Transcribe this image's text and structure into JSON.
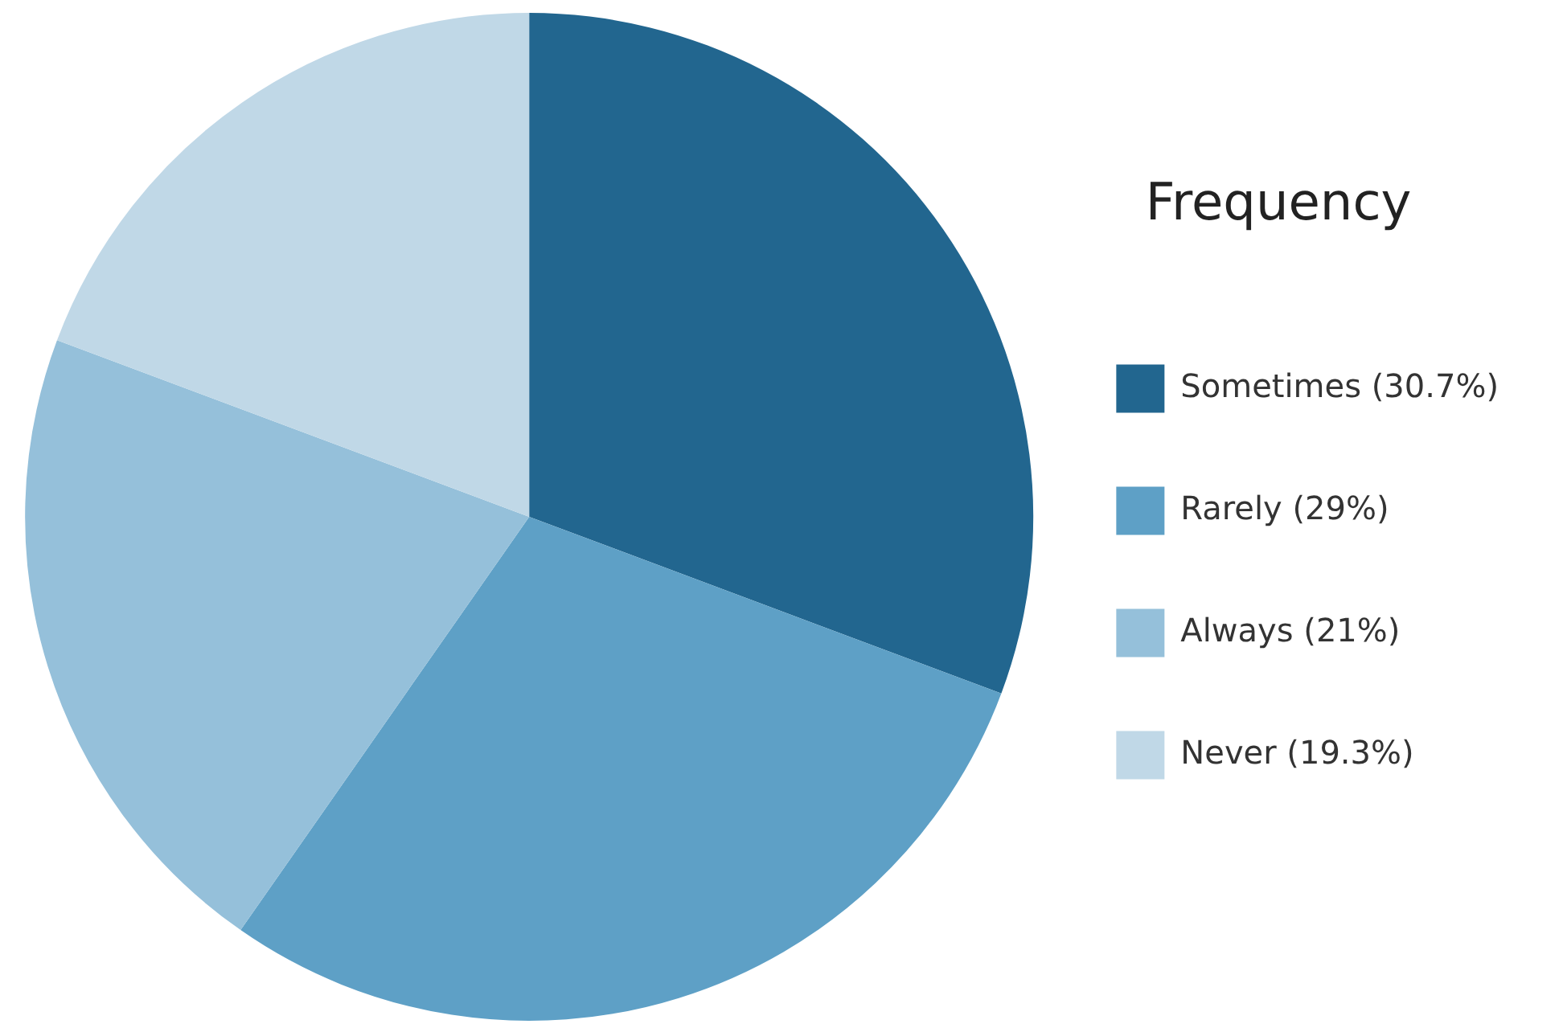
{
  "chart_data": {
    "type": "pie",
    "legend_title": "Frequency",
    "legend": "right",
    "categories": [
      "Sometimes (30.7%)",
      "Rarely (29%)",
      "Always (21%)",
      "Never (19.3%)"
    ],
    "values": [
      30.7,
      29,
      21,
      19.3
    ],
    "colors": [
      "#22668f",
      "#5ea0c6",
      "#95c0da",
      "#c0d8e7"
    ]
  }
}
